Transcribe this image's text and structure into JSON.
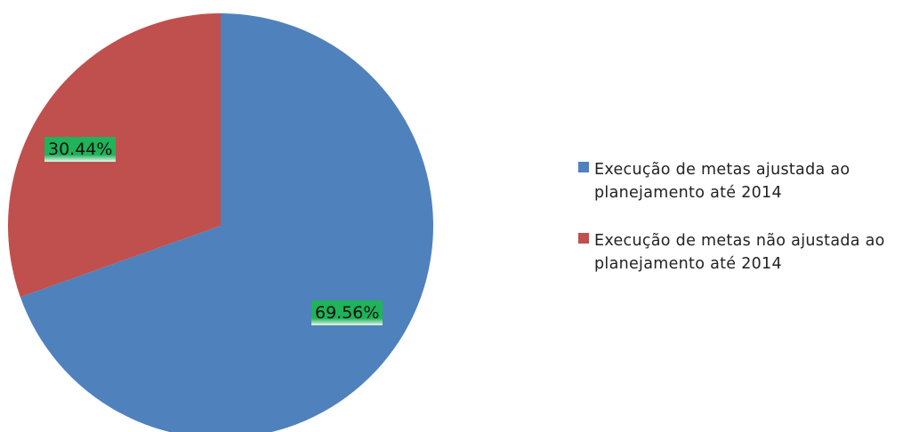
{
  "chart_data": {
    "type": "pie",
    "title": "",
    "slices": [
      {
        "label": "Execução de metas ajustada  ao planejamento até 2014",
        "value": 69.56,
        "value_label": "69.56%",
        "color": "#4F81BD"
      },
      {
        "label": "Execução de metas não ajustada ao planejamento até 2014",
        "value": 30.44,
        "value_label": "30.44%",
        "color": "#C0504D"
      }
    ],
    "start_angle": "12 o'clock",
    "direction": "clockwise",
    "legend": "right",
    "label_style": {
      "background": "#1fb35a"
    }
  }
}
